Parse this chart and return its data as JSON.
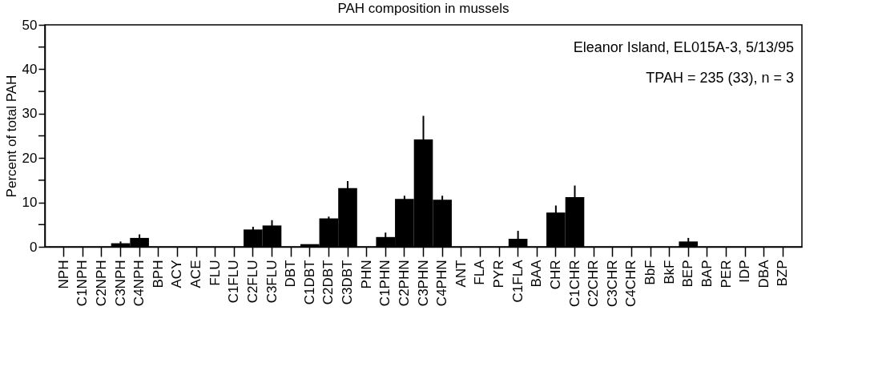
{
  "chart_data": {
    "type": "bar",
    "title": "PAH composition in mussels",
    "ylabel": "Percent of total PAH",
    "annotations": [
      "Eleanor Island, EL015A-3, 5/13/95",
      "TPAH = 235 (33), n = 3"
    ],
    "categories": [
      "NPH",
      "C1NPH",
      "C2NPH",
      "C3NPH",
      "C4NPH",
      "BPH",
      "ACY",
      "ACE",
      "FLU",
      "C1FLU",
      "C2FLU",
      "C3FLU",
      "DBT",
      "C1DBT",
      "C2DBT",
      "C3DBT",
      "PHN",
      "C1PHN",
      "C2PHN",
      "C3PHN",
      "C4PHN",
      "ANT",
      "FLA",
      "PYR",
      "C1FLA",
      "BAA",
      "CHR",
      "C1CHR",
      "C2CHR",
      "C3CHR",
      "C4CHR",
      "BbF",
      "BkF",
      "BEP",
      "BAP",
      "PER",
      "IDP",
      "DBA",
      "BZP"
    ],
    "values": [
      0,
      0,
      0,
      0.8,
      2,
      0,
      0,
      0,
      0,
      0,
      3.9,
      4.8,
      0,
      0.6,
      6.4,
      13.2,
      0,
      2.2,
      10.8,
      24.2,
      10.6,
      0,
      0,
      0,
      1.8,
      0,
      7.7,
      11.2,
      0,
      0,
      0,
      0,
      0,
      1.2,
      0,
      0,
      0,
      0,
      0
    ],
    "errors": [
      null,
      null,
      null,
      0.4,
      0.8,
      null,
      null,
      null,
      null,
      null,
      0.6,
      1.2,
      null,
      null,
      0.4,
      1.6,
      null,
      1.0,
      0.7,
      5.3,
      0.9,
      null,
      null,
      null,
      1.8,
      null,
      1.6,
      2.6,
      null,
      null,
      null,
      null,
      null,
      0.8,
      null,
      null,
      null,
      null,
      null
    ],
    "color": "#000000",
    "ylim": [
      0,
      50
    ],
    "yticks": [
      0,
      {
        "value": 5,
        "label": null
      },
      10,
      {
        "value": 15,
        "label": null
      },
      20,
      {
        "value": 25,
        "label": null
      },
      30,
      {
        "value": 35,
        "label": null
      },
      40,
      {
        "value": 45,
        "label": null
      },
      50
    ],
    "grid": false
  }
}
